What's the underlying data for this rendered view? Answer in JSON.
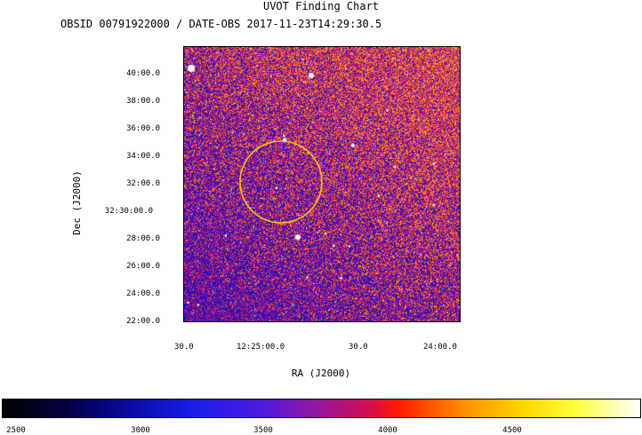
{
  "header": {
    "title": "UVOT Finding Chart",
    "subtitle": "OBSID 00791922000 / DATE-OBS 2017-11-23T14:29:30.5"
  },
  "axes": {
    "x_label": "RA (J2000)",
    "y_label": "Dec (J2000)",
    "x_ticks": [
      "30.0",
      "12:25:00.0",
      "30.0",
      "24:00.0"
    ],
    "y_ticks": [
      "40:00.0",
      "38:00.0",
      "36:00.0",
      "34:00.0",
      "32:00.0",
      "32:30:00.0",
      "28:00.0",
      "26:00.0",
      "24:00.0",
      "22:00.0"
    ]
  },
  "colorbar": {
    "ticks": [
      "2500",
      "3000",
      "3500",
      "4000",
      "4500"
    ]
  },
  "image": {
    "description_colors": {
      "background_blue": "#1c0fb0",
      "noise_red": "#d8102a",
      "noise_orange": "#ff7a00",
      "star_white": "#ffffff",
      "marker_circle": "#f0c020"
    },
    "marker_shape": "circle"
  }
}
